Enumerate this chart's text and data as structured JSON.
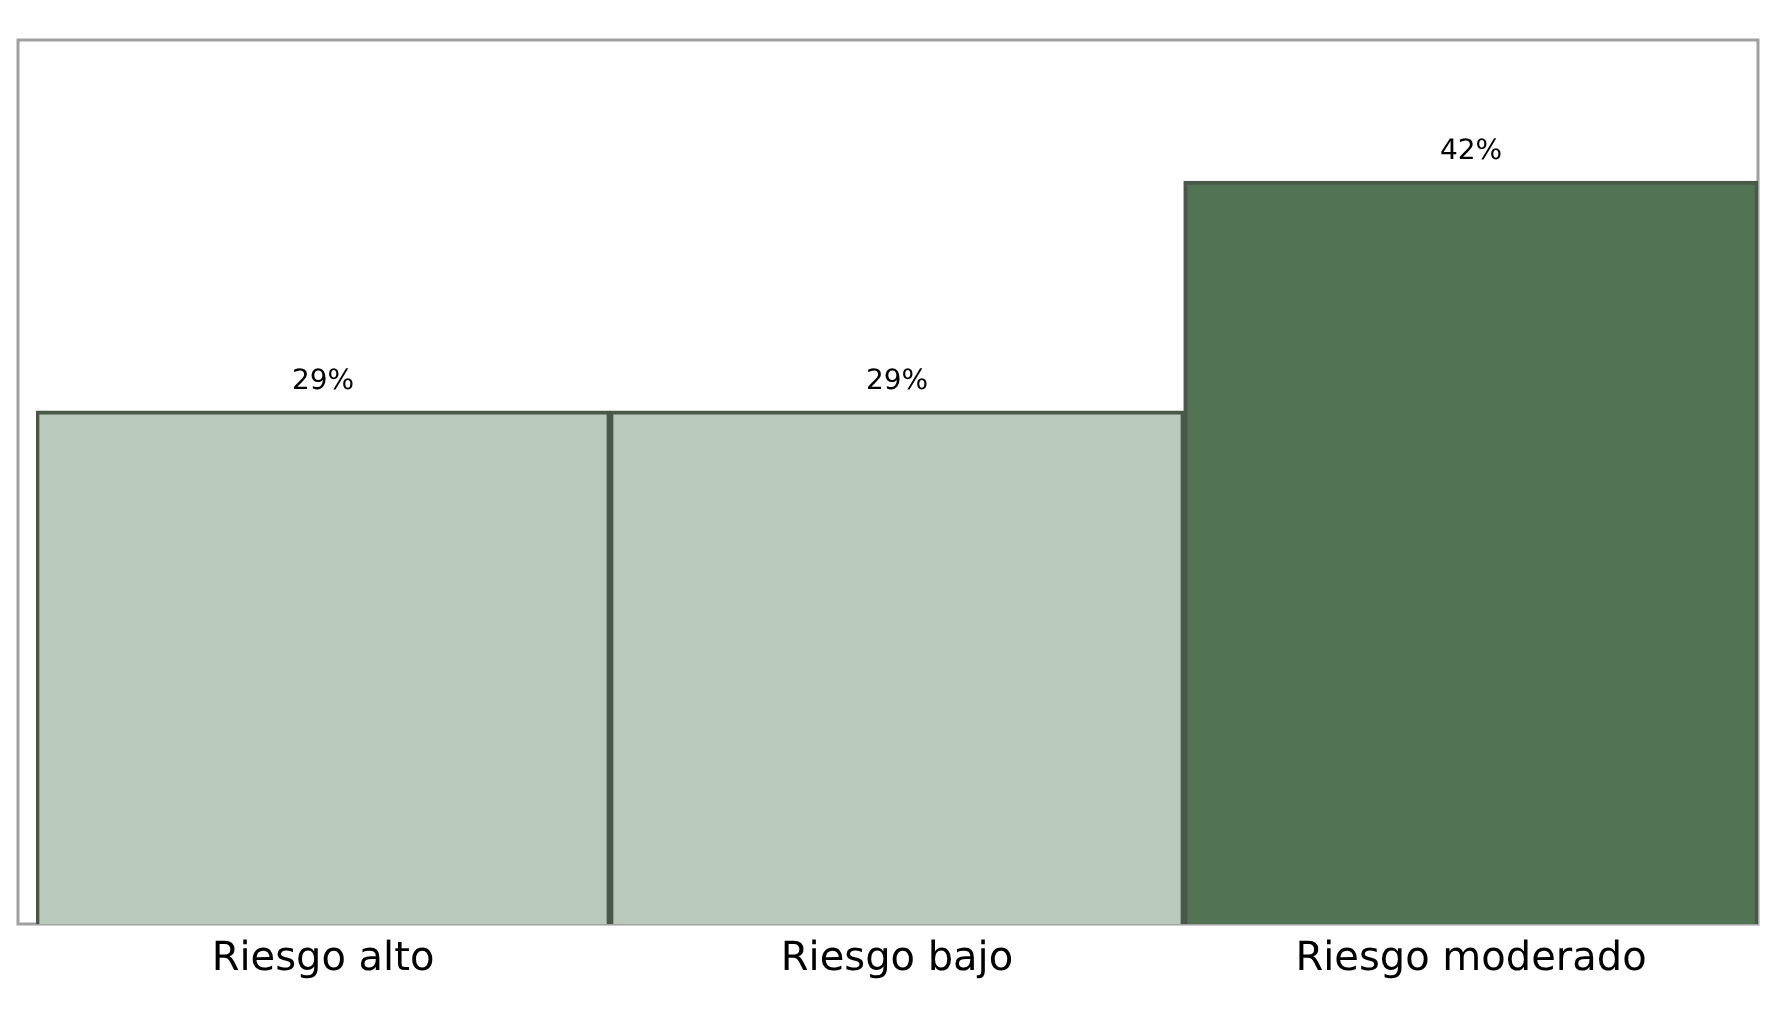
{
  "chart_data": {
    "type": "bar",
    "categories": [
      "Riesgo alto",
      "Riesgo bajo",
      "Riesgo moderado"
    ],
    "values": [
      29,
      29,
      42
    ],
    "colors": [
      "#b9c9bb",
      "#b9c9bb",
      "#527454"
    ],
    "ylim": [
      0,
      50
    ],
    "tick_labels": "x",
    "grid": false,
    "legend": false,
    "value_labels": [
      "29%",
      "29%",
      "42%"
    ]
  }
}
